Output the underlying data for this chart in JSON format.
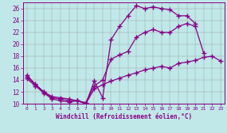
{
  "title": "Windchill (Refroidissement éolien,°C)",
  "bg_color": "#c0e8e8",
  "line_color": "#880088",
  "xlim": [
    -0.5,
    23.5
  ],
  "ylim": [
    10,
    27
  ],
  "xticks": [
    0,
    1,
    2,
    3,
    4,
    5,
    6,
    7,
    8,
    9,
    10,
    11,
    12,
    13,
    14,
    15,
    16,
    17,
    18,
    19,
    20,
    21,
    22,
    23
  ],
  "yticks": [
    10,
    12,
    14,
    16,
    18,
    20,
    22,
    24,
    26
  ],
  "curves": [
    {
      "x": [
        0,
        1,
        2,
        3,
        4,
        5,
        6,
        7,
        8,
        9,
        10,
        11,
        12,
        13,
        14,
        15,
        16,
        17,
        18,
        19,
        20
      ],
      "y": [
        14.8,
        13.3,
        12.0,
        11.2,
        11.0,
        10.8,
        10.5,
        10.0,
        13.8,
        11.0,
        20.8,
        23.0,
        24.8,
        26.5,
        26.0,
        26.3,
        26.0,
        25.8,
        24.8,
        24.8,
        23.5
      ]
    },
    {
      "x": [
        0,
        1,
        2,
        3,
        4,
        5,
        6,
        7,
        8,
        9,
        10,
        11,
        12,
        13,
        14,
        15,
        16,
        17,
        18,
        19,
        20,
        21
      ],
      "y": [
        14.5,
        13.2,
        12.0,
        11.0,
        10.8,
        10.5,
        10.5,
        10.2,
        13.0,
        14.0,
        17.5,
        18.2,
        18.8,
        21.2,
        22.0,
        22.5,
        22.0,
        22.0,
        23.0,
        23.5,
        23.0,
        18.5
      ]
    },
    {
      "x": [
        0,
        1,
        2,
        3,
        4,
        5,
        6,
        7,
        8,
        9,
        10,
        11,
        12,
        13,
        14,
        15,
        16,
        17,
        18,
        19,
        20,
        21,
        22,
        23
      ],
      "y": [
        14.2,
        13.0,
        11.8,
        10.8,
        10.5,
        10.3,
        10.5,
        10.0,
        12.5,
        13.2,
        13.8,
        14.3,
        14.8,
        15.2,
        15.7,
        16.0,
        16.3,
        16.0,
        16.8,
        17.0,
        17.3,
        17.8,
        18.0,
        17.2
      ]
    }
  ]
}
